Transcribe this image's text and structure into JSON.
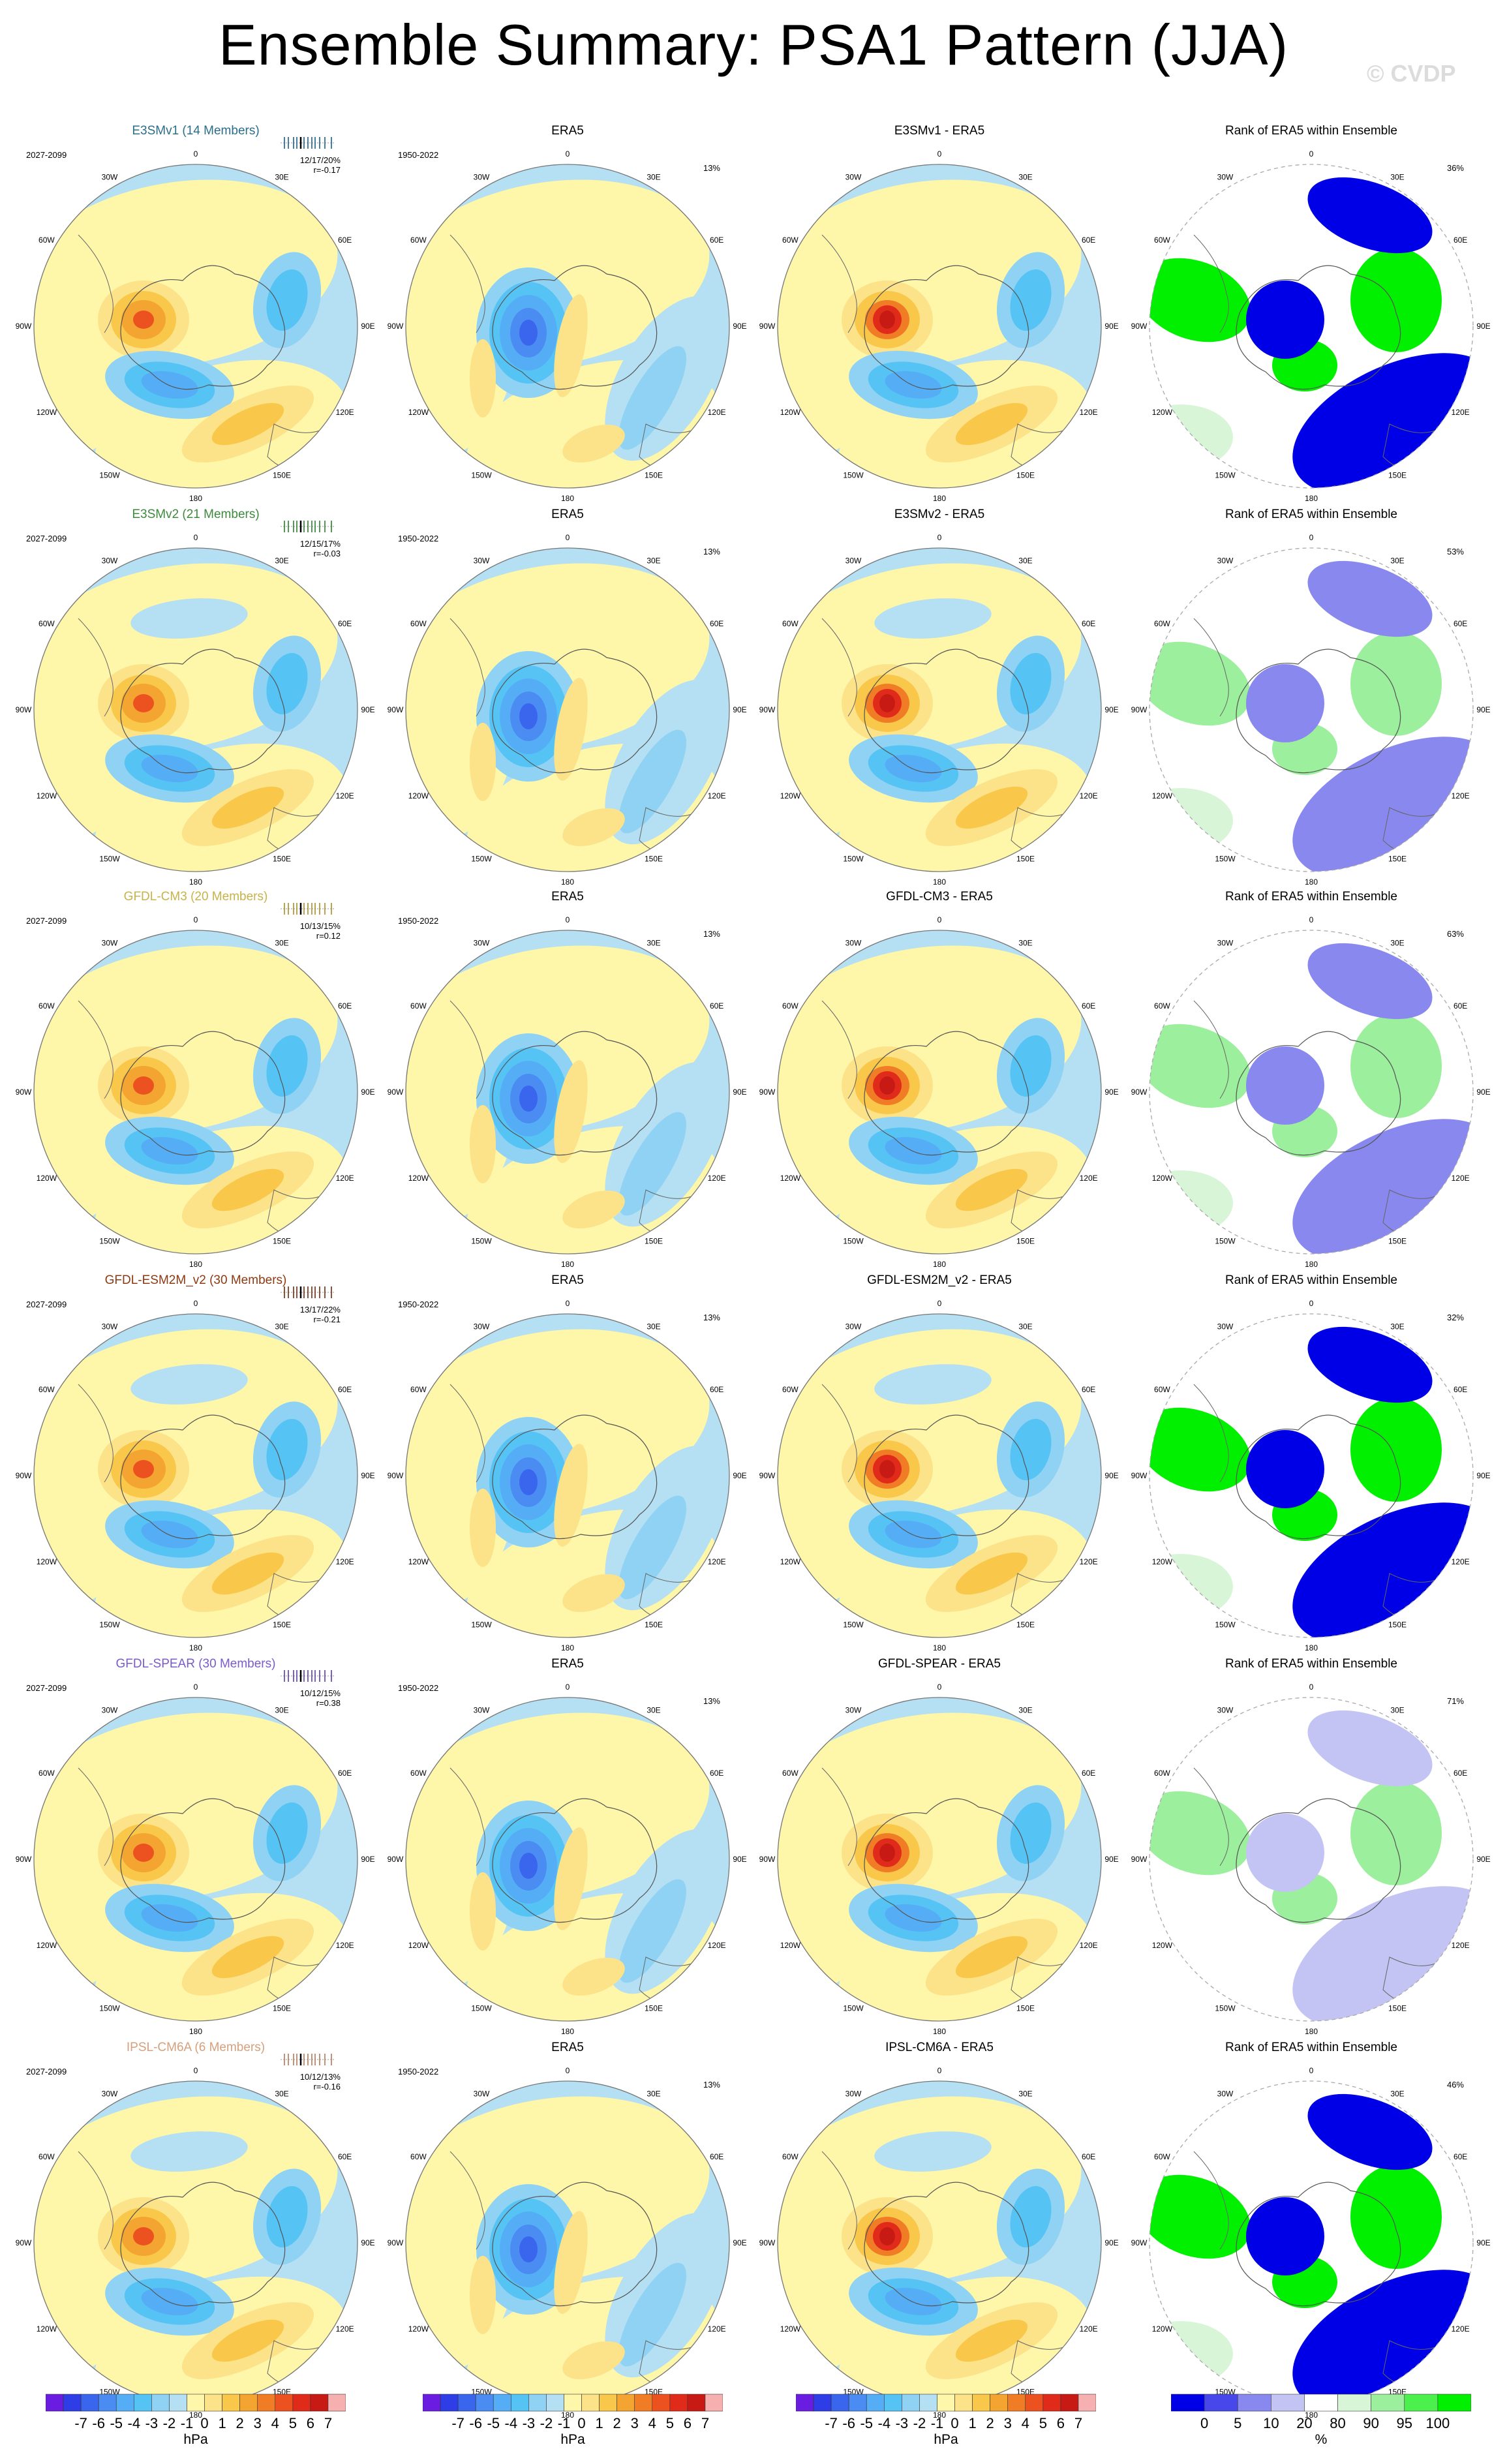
{
  "title": "Ensemble Summary: PSA1 Pattern (JJA)",
  "watermark": "© CVDP",
  "era5_title": "ERA5",
  "era5_years": "1950-2022",
  "era5_pct": "13%",
  "rank_title": "Rank of ERA5 within Ensemble",
  "lon_labels": {
    "n0": "0",
    "n30e": "30E",
    "n60e": "60E",
    "n90e": "90E",
    "n120e": "120E",
    "n150e": "150E",
    "n180": "180",
    "n150w": "150W",
    "n120w": "120W",
    "n90w": "90W",
    "n60w": "60W",
    "n30w": "30W"
  },
  "rows": [
    {
      "model_title": "E3SMv1 (14 Members)",
      "model_color": "#2a6e8a",
      "years": "2027-2099",
      "pcts": "12/17/20%",
      "r": "r=-0.17",
      "diff_title": "E3SMv1 - ERA5",
      "rank_pct": "36%",
      "rank_style": "strong"
    },
    {
      "model_title": "E3SMv2 (21 Members)",
      "model_color": "#3d8a3d",
      "years": "2027-2099",
      "pcts": "12/15/17%",
      "r": "r=-0.03",
      "diff_title": "E3SMv2 - ERA5",
      "rank_pct": "53%",
      "rank_style": "mixed"
    },
    {
      "model_title": "GFDL-CM3 (20 Members)",
      "model_color": "#c8b24a",
      "years": "2027-2099",
      "pcts": "10/13/15%",
      "r": "r=0.12",
      "diff_title": "GFDL-CM3 - ERA5",
      "rank_pct": "63%",
      "rank_style": "mixed"
    },
    {
      "model_title": "GFDL-ESM2M_v2 (30 Members)",
      "model_color": "#8b3a12",
      "years": "2027-2099",
      "pcts": "13/17/22%",
      "r": "r=-0.21",
      "diff_title": "GFDL-ESM2M_v2 - ERA5",
      "rank_pct": "32%",
      "rank_style": "strong"
    },
    {
      "model_title": "GFDL-SPEAR (30 Members)",
      "model_color": "#7a5bc8",
      "years": "2027-2099",
      "pcts": "10/12/15%",
      "r": "r=0.38",
      "diff_title": "GFDL-SPEAR - ERA5",
      "rank_pct": "71%",
      "rank_style": "light"
    },
    {
      "model_title": "IPSL-CM6A (6 Members)",
      "model_color": "#d6a07c",
      "years": "2027-2099",
      "pcts": "10/12/13%",
      "r": "r=-0.16",
      "diff_title": "IPSL-CM6A - ERA5",
      "rank_pct": "46%",
      "rank_style": "strong"
    }
  ],
  "colorbars": {
    "unit": "hPa",
    "ticks": [
      "-7",
      "-6",
      "-5",
      "-4",
      "-3",
      "-2",
      "-1",
      "0",
      "1",
      "2",
      "3",
      "4",
      "5",
      "6",
      "7"
    ],
    "colors": [
      "#6a1de0",
      "#2f3de6",
      "#3a66ee",
      "#4a8cf2",
      "#55aef5",
      "#56c3f5",
      "#8fd2f3",
      "#b5dff2",
      "#fef6a8",
      "#fce38a",
      "#f9c84a",
      "#f4a430",
      "#f07d25",
      "#ec5220",
      "#e02a1a",
      "#c81a14",
      "#f7b0b0"
    ],
    "rank_unit": "%",
    "rank_ticks": [
      "0",
      "5",
      "10",
      "20",
      "80",
      "90",
      "95",
      "100"
    ],
    "rank_colors": [
      "#0000e6",
      "#4848ea",
      "#8888ee",
      "#c4c4f4",
      "#ffffff",
      "#d8f5d8",
      "#9cef9c",
      "#4cf04c",
      "#00f000"
    ]
  },
  "mini_tick_colors": [
    "#1b5e8a",
    "#2d7d2d",
    "#a88c2a",
    "#6b2a0a",
    "#5b3ba8",
    "#b07a56"
  ]
}
